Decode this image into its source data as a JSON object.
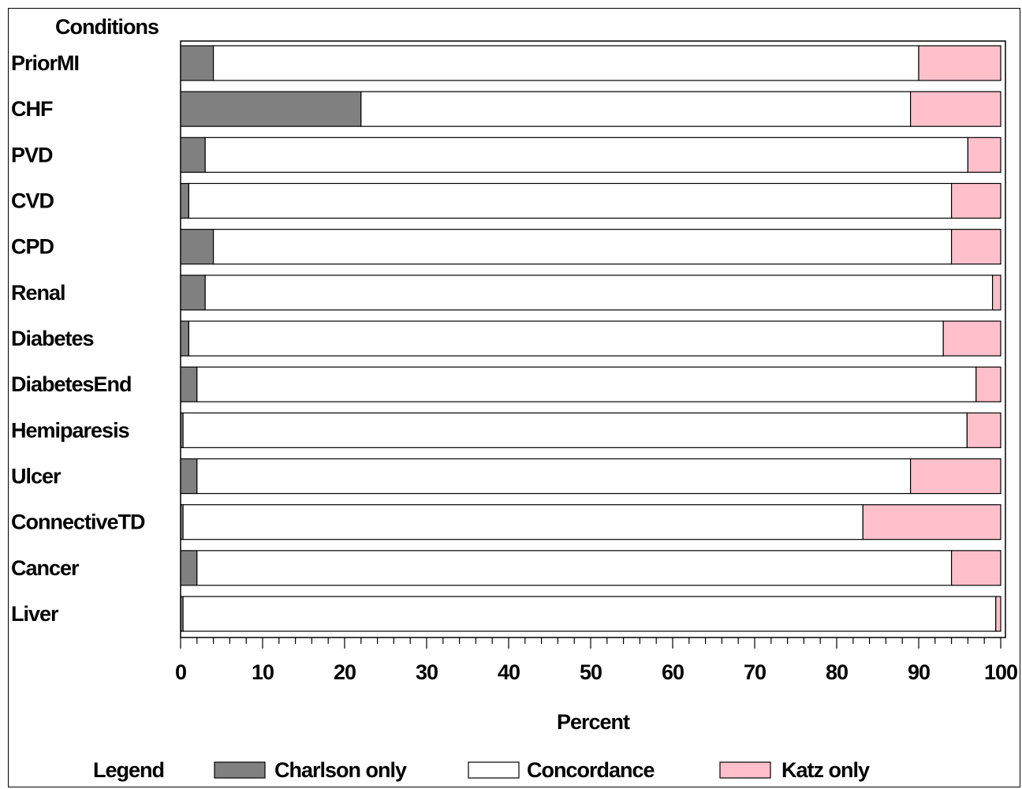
{
  "chart_data": {
    "type": "bar",
    "orientation": "horizontal",
    "stacked": true,
    "ytitle": "Conditions",
    "xlabel": "Percent",
    "xlim": [
      0,
      100
    ],
    "xticks": [
      "0",
      "10",
      "20",
      "30",
      "40",
      "50",
      "60",
      "70",
      "80",
      "90",
      "100"
    ],
    "categories": [
      "PriorMI",
      "CHF",
      "PVD",
      "CVD",
      "CPD",
      "Renal",
      "Diabetes",
      "DiabetesEnd",
      "Hemiparesis",
      "Ulcer",
      "ConnectiveTD",
      "Cancer",
      "Liver"
    ],
    "series": [
      {
        "name": "Charlson only",
        "color": "#808080",
        "values": [
          4,
          22,
          3,
          1,
          4,
          3,
          1,
          2,
          0.3,
          2,
          0.3,
          2,
          0.3
        ]
      },
      {
        "name": "Concordance",
        "color": "#ffffff",
        "values": [
          86,
          67,
          93,
          93,
          90,
          96,
          92,
          95,
          95.6,
          87,
          82.9,
          92,
          99.1
        ]
      },
      {
        "name": "Katz only",
        "color": "#ffc0cb",
        "values": [
          10,
          11,
          4,
          6,
          6,
          1,
          7,
          3,
          4.1,
          11,
          16.8,
          6,
          0.6
        ]
      }
    ],
    "legend_title": "Legend",
    "legend_position": "bottom",
    "grid": false
  }
}
